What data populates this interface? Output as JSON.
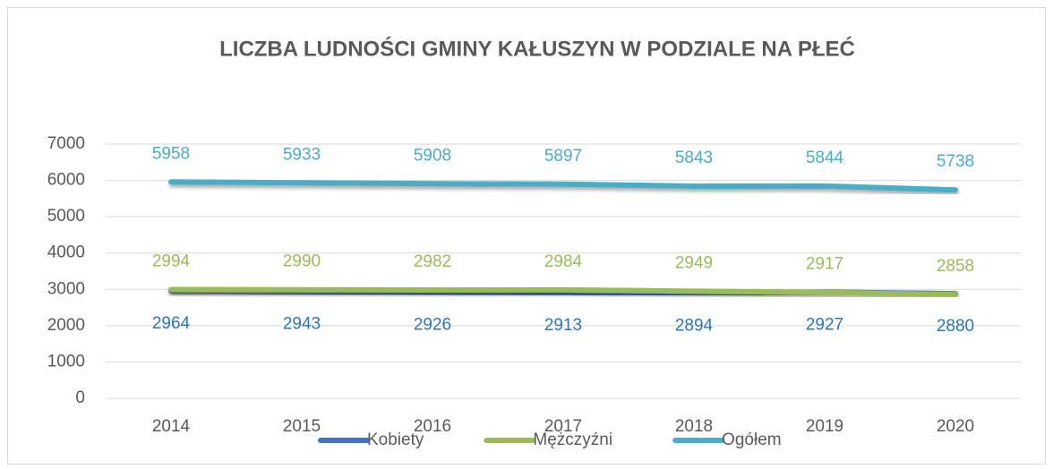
{
  "chart_data": {
    "type": "line",
    "title": "LICZBA LUDNOŚCI GMINY KAŁUSZYN W PODZIALE NA PŁEĆ",
    "categories": [
      "2014",
      "2015",
      "2016",
      "2017",
      "2018",
      "2019",
      "2020"
    ],
    "series": [
      {
        "name": "Kobiety",
        "color": "#4472c4",
        "values": [
          2964,
          2943,
          2926,
          2913,
          2894,
          2927,
          2880
        ]
      },
      {
        "name": "Mężczyźni",
        "color": "#9bbb59",
        "values": [
          2994,
          2990,
          2982,
          2984,
          2949,
          2917,
          2858
        ]
      },
      {
        "name": "Ogółem",
        "color": "#4bacc6",
        "values": [
          5958,
          5933,
          5908,
          5897,
          5843,
          5844,
          5738
        ]
      }
    ],
    "ylim": [
      0,
      7000
    ],
    "yticks": [
      0,
      1000,
      2000,
      3000,
      4000,
      5000,
      6000,
      7000
    ],
    "grid": true,
    "legend": "bottom"
  }
}
